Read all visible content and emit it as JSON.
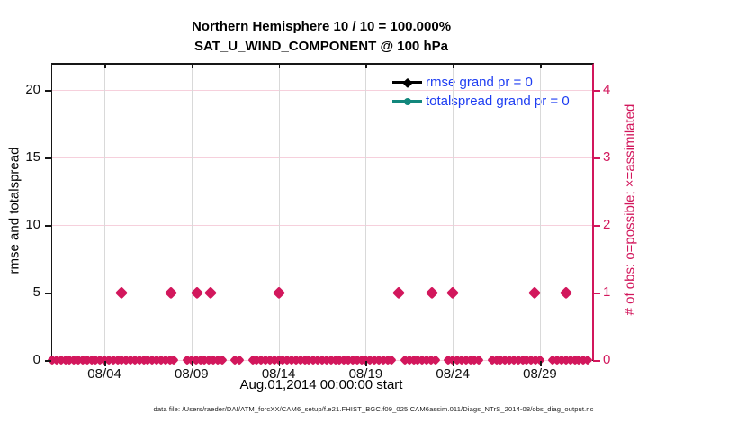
{
  "figure": {
    "title_line1": "Northern Hemisphere 10 / 10 = 100.000%",
    "title_line2": "SAT_U_WIND_COMPONENT @ 100 hPa",
    "footer": "data file: /Users/raeder/DAI/ATM_forcXX/CAM6_setup/f.e21.FHIST_BGC.f09_025.CAM6assim.011/Diags_NTrS_2014-08/obs_diag_output.nc"
  },
  "chart_data": {
    "type": "scatter",
    "title": "Northern Hemisphere 10 / 10 = 100.000%",
    "subtitle": "SAT_U_WIND_COMPONENT @ 100 hPa",
    "xlabel": "Aug.01,2014 00:00:00 start",
    "ylabel_left": "rmse and totalspread",
    "ylabel_right": "# of obs: o=possible; ×=assimilated",
    "grid": true,
    "legend_position": "top-right-inside",
    "xlim_days": [
      1,
      32
    ],
    "ylim_left": [
      0,
      21.87
    ],
    "ylim_right": [
      0,
      4.374
    ],
    "x_ticks": [
      {
        "day": 4,
        "label": "08/04"
      },
      {
        "day": 9,
        "label": "08/09"
      },
      {
        "day": 14,
        "label": "08/14"
      },
      {
        "day": 19,
        "label": "08/19"
      },
      {
        "day": 24,
        "label": "08/24"
      },
      {
        "day": 29,
        "label": "08/29"
      }
    ],
    "y_ticks_left": [
      0,
      5,
      10,
      15,
      20
    ],
    "y_ticks_right": [
      0,
      1,
      2,
      3,
      4
    ],
    "legend": [
      {
        "label": "rmse grand pr = 0",
        "color": "#000000",
        "marker": "diamond"
      },
      {
        "label": "totalspread grand pr = 0",
        "color": "#12877c",
        "marker": "circle"
      }
    ],
    "series": [
      {
        "name": "rmse grand pr = 0",
        "axis": "left",
        "color": "#000000",
        "marker": "diamond",
        "points": []
      },
      {
        "name": "totalspread grand pr = 0",
        "axis": "left",
        "color": "#12877c",
        "marker": "circle",
        "points": []
      },
      {
        "name": "obs count",
        "axis": "right",
        "color": "#d2175c",
        "marker": "diamond",
        "count_one_days": [
          5.0,
          7.8,
          9.3,
          10.1,
          14.0,
          20.9,
          22.8,
          24.0,
          28.7,
          30.5
        ],
        "zero_row": {
          "start_day": 1.0,
          "end_day": 31.95,
          "step_day": 0.25,
          "gaps": [
            [
              8.25,
              8.7
            ],
            [
              10.8,
              11.25
            ],
            [
              11.9,
              12.35
            ],
            [
              20.65,
              21.05
            ],
            [
              23.2,
              23.65
            ],
            [
              25.6,
              26.05
            ],
            [
              29.1,
              29.5
            ]
          ]
        }
      }
    ],
    "colors": {
      "accent_crimson": "#d2175c",
      "teal": "#12877c",
      "legend_text": "#1d3df2",
      "grid_vertical": "#d9d9d9",
      "grid_horizontal": "#f6d0dc",
      "axis": "#161616"
    }
  }
}
